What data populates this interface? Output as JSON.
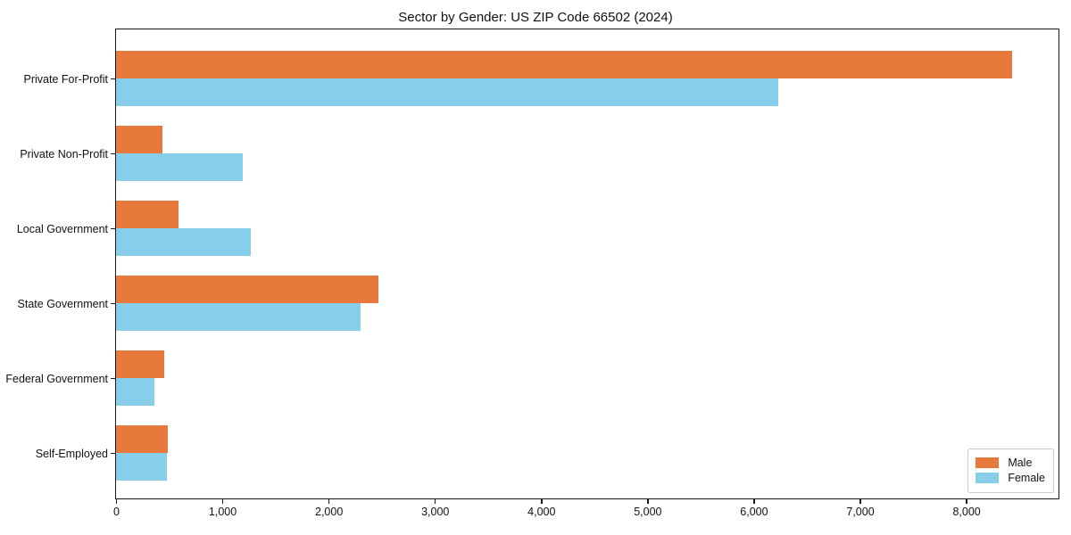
{
  "title": "Sector by Gender: US ZIP Code 66502 (2024)",
  "chart_data": {
    "type": "bar",
    "orientation": "horizontal",
    "title": "Sector by Gender: US ZIP Code 66502 (2024)",
    "categories": [
      "Private For-Profit",
      "Private Non-Profit",
      "Local Government",
      "State Government",
      "Federal Government",
      "Self-Employed"
    ],
    "series": [
      {
        "name": "Male",
        "color": "#E8793D",
        "values": [
          8430,
          440,
          590,
          2470,
          450,
          490
        ]
      },
      {
        "name": "Female",
        "color": "#87CEEB",
        "values": [
          6230,
          1195,
          1270,
          2300,
          360,
          480
        ]
      }
    ],
    "xlabel": "",
    "ylabel": "",
    "xlim": [
      0,
      8860
    ],
    "xticks": [
      0,
      1000,
      2000,
      3000,
      4000,
      5000,
      6000,
      7000,
      8000
    ],
    "xtick_labels": [
      "0",
      "1,000",
      "2,000",
      "3,000",
      "4,000",
      "5,000",
      "6,000",
      "7,000",
      "8,000"
    ],
    "legend": {
      "position": "lower right",
      "entries": [
        "Male",
        "Female"
      ]
    },
    "grid": false,
    "background": "#FFFFFF",
    "axis_color": "#1A1A1A"
  }
}
